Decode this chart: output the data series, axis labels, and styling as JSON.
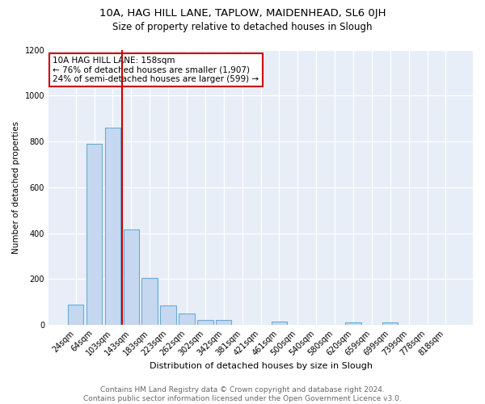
{
  "title1": "10A, HAG HILL LANE, TAPLOW, MAIDENHEAD, SL6 0JH",
  "title2": "Size of property relative to detached houses in Slough",
  "xlabel": "Distribution of detached houses by size in Slough",
  "ylabel": "Number of detached properties",
  "categories": [
    "24sqm",
    "64sqm",
    "103sqm",
    "143sqm",
    "183sqm",
    "223sqm",
    "262sqm",
    "302sqm",
    "342sqm",
    "381sqm",
    "421sqm",
    "461sqm",
    "500sqm",
    "540sqm",
    "580sqm",
    "620sqm",
    "659sqm",
    "699sqm",
    "739sqm",
    "778sqm",
    "818sqm"
  ],
  "values": [
    90,
    790,
    860,
    415,
    205,
    85,
    50,
    20,
    20,
    0,
    0,
    15,
    0,
    0,
    0,
    10,
    0,
    10,
    0,
    0,
    0
  ],
  "bar_color": "#c5d8f0",
  "bar_edge_color": "#6aaad4",
  "vline_x": 2.5,
  "vline_color": "#cc0000",
  "annotation_text": "10A HAG HILL LANE: 158sqm\n← 76% of detached houses are smaller (1,907)\n24% of semi-detached houses are larger (599) →",
  "annotation_box_color": "#ffffff",
  "annotation_box_edge": "#cc0000",
  "ylim": [
    0,
    1200
  ],
  "yticks": [
    0,
    200,
    400,
    600,
    800,
    1000,
    1200
  ],
  "footer1": "Contains HM Land Registry data © Crown copyright and database right 2024.",
  "footer2": "Contains public sector information licensed under the Open Government Licence v3.0.",
  "plot_bg_color": "#e8eef8",
  "title1_fontsize": 9.5,
  "title2_fontsize": 8.5,
  "xlabel_fontsize": 8,
  "ylabel_fontsize": 7.5,
  "footer_fontsize": 6.5,
  "tick_fontsize": 7,
  "annot_fontsize": 7.5
}
